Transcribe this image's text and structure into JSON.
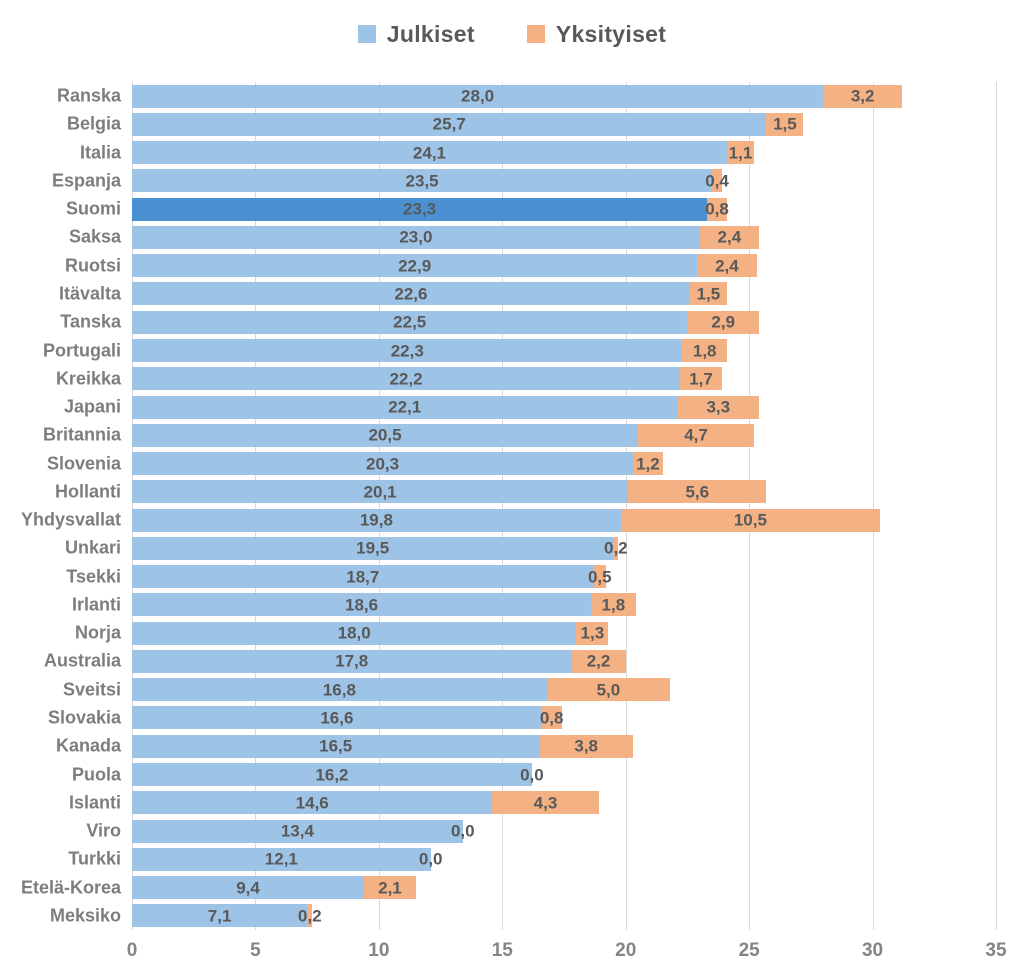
{
  "chart_data": {
    "type": "bar",
    "orientation": "horizontal",
    "stacked": true,
    "title": "",
    "categories": [
      "Ranska",
      "Belgia",
      "Italia",
      "Espanja",
      "Suomi",
      "Saksa",
      "Ruotsi",
      "Itävalta",
      "Tanska",
      "Portugali",
      "Kreikka",
      "Japani",
      "Britannia",
      "Slovenia",
      "Hollanti",
      "Yhdysvallat",
      "Unkari",
      "Tsekki",
      "Irlanti",
      "Norja",
      "Australia",
      "Sveitsi",
      "Slovakia",
      "Kanada",
      "Puola",
      "Islanti",
      "Viro",
      "Turkki",
      "Etelä-Korea",
      "Meksiko"
    ],
    "series": [
      {
        "name": "Julkiset",
        "color": "#9DC3E6",
        "values": [
          28.0,
          25.7,
          24.1,
          23.5,
          23.3,
          23.0,
          22.9,
          22.6,
          22.5,
          22.3,
          22.2,
          22.1,
          20.5,
          20.3,
          20.1,
          19.8,
          19.5,
          18.7,
          18.6,
          18.0,
          17.8,
          16.8,
          16.6,
          16.5,
          16.2,
          14.6,
          13.4,
          12.1,
          9.4,
          7.1
        ],
        "labels": [
          "28,0",
          "25,7",
          "24,1",
          "23,5",
          "23,3",
          "23,0",
          "22,9",
          "22,6",
          "22,5",
          "22,3",
          "22,2",
          "22,1",
          "20,5",
          "20,3",
          "20,1",
          "19,8",
          "19,5",
          "18,7",
          "18,6",
          "18,0",
          "17,8",
          "16,8",
          "16,6",
          "16,5",
          "16,2",
          "14,6",
          "13,4",
          "12,1",
          "9,4",
          "7,1"
        ]
      },
      {
        "name": "Yksityiset",
        "color": "#F4B183",
        "values": [
          3.2,
          1.5,
          1.1,
          0.4,
          0.8,
          2.4,
          2.4,
          1.5,
          2.9,
          1.8,
          1.7,
          3.3,
          4.7,
          1.2,
          5.6,
          10.5,
          0.2,
          0.5,
          1.8,
          1.3,
          2.2,
          5.0,
          0.8,
          3.8,
          0.0,
          4.3,
          0.0,
          0.0,
          2.1,
          0.2
        ],
        "labels": [
          "3,2",
          "1,5",
          "1,1",
          "0,4",
          "0,8",
          "2,4",
          "2,4",
          "1,5",
          "2,9",
          "1,8",
          "1,7",
          "3,3",
          "4,7",
          "1,2",
          "5,6",
          "10,5",
          "0,2",
          "0,5",
          "1,8",
          "1,3",
          "2,2",
          "5,0",
          "0,8",
          "3,8",
          "0,0",
          "4,3",
          "0,0",
          "0,0",
          "2,1",
          "0,2"
        ]
      }
    ],
    "highlight": {
      "category": "Suomi",
      "color": "#4A90D2"
    },
    "xlim": [
      0,
      35
    ],
    "xticks": [
      0,
      5,
      10,
      15,
      20,
      25,
      30,
      35
    ],
    "grid": true,
    "legend_position": "top",
    "gridline_color": "#D9D9D9",
    "value_label_color": "#595959",
    "category_label_color": "#7D7D7D",
    "axis_tick_color": "#848484"
  }
}
